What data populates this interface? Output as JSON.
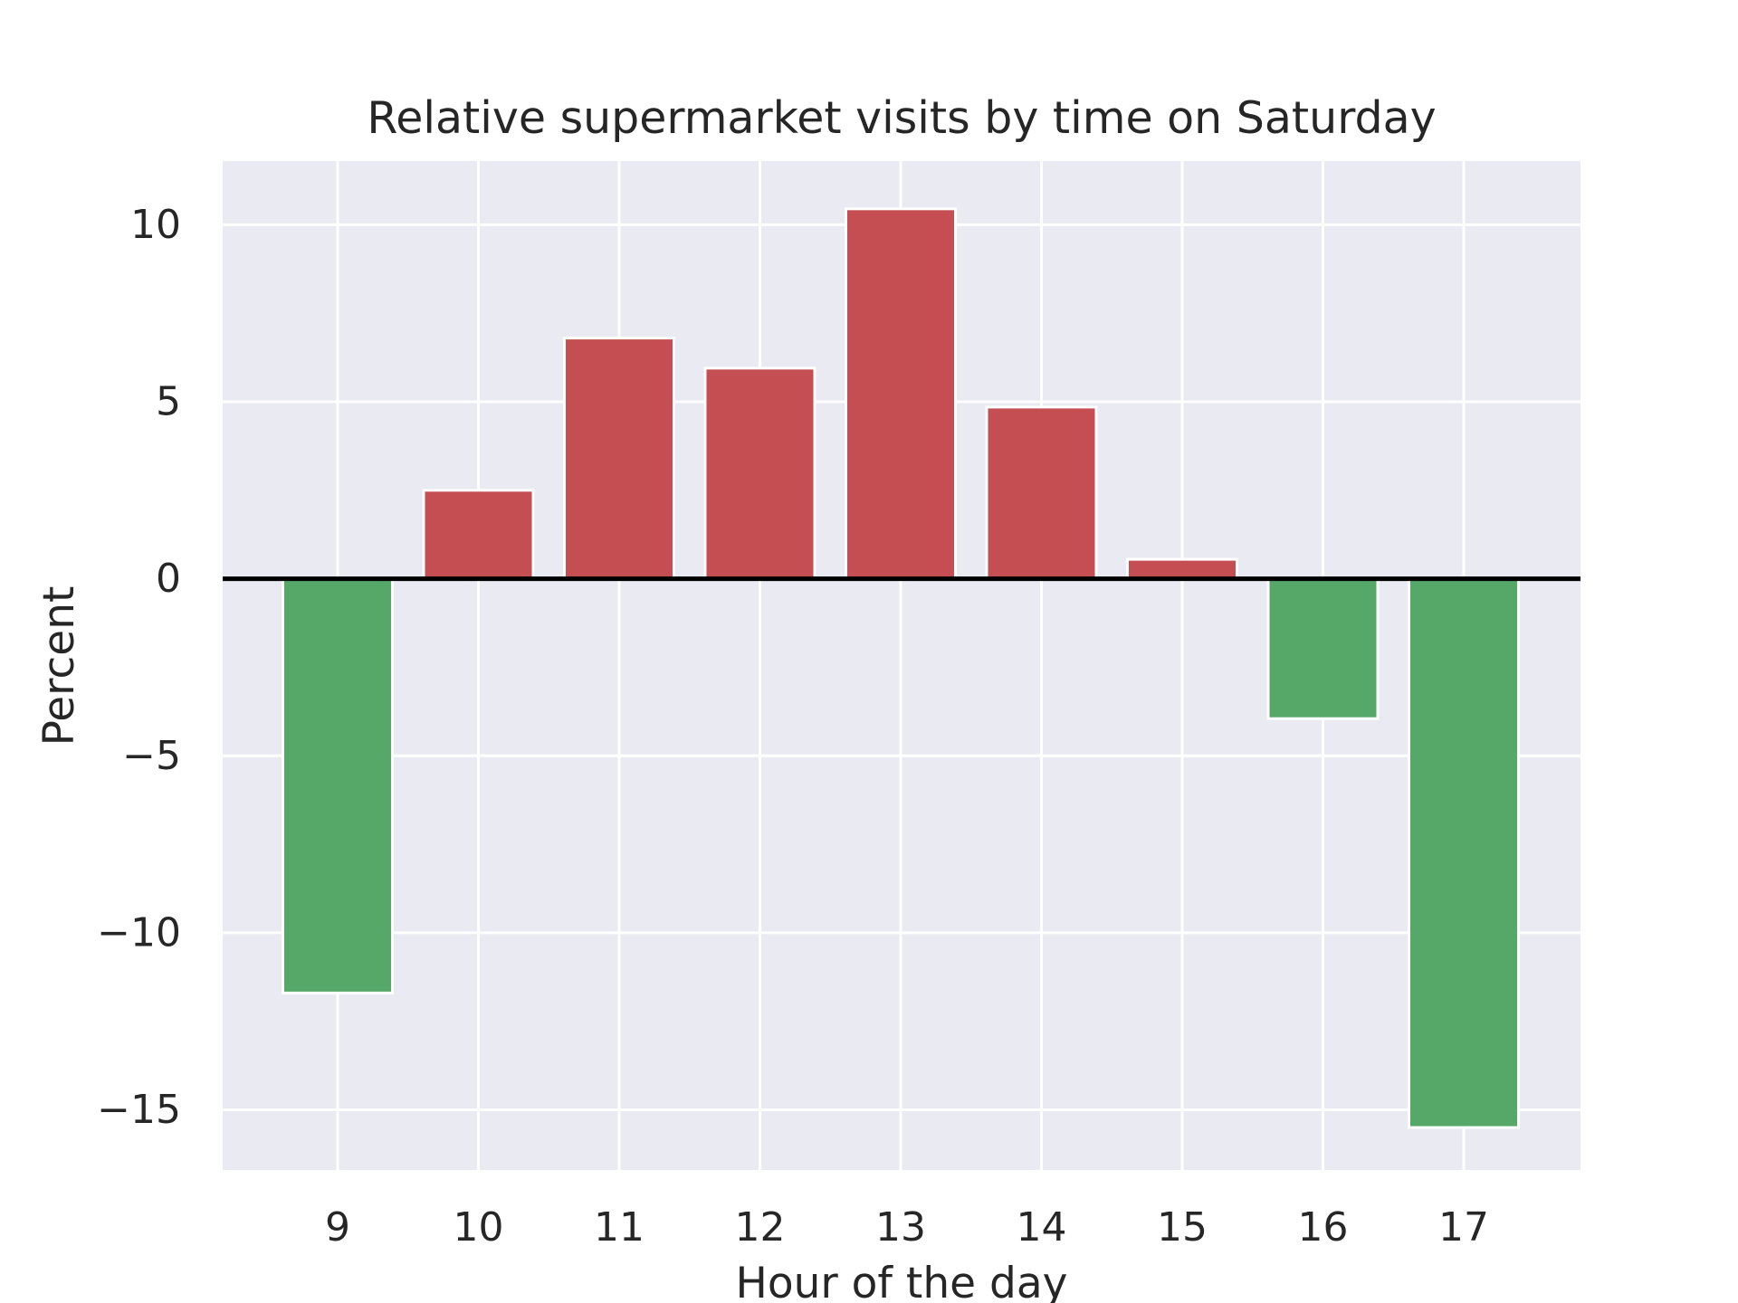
{
  "chart_data": {
    "type": "bar",
    "title": "Relative supermarket visits by time on Saturday",
    "xlabel": "Hour of the day",
    "ylabel": "Percent",
    "categories": [
      "9",
      "10",
      "11",
      "12",
      "13",
      "14",
      "15",
      "16",
      "17"
    ],
    "values": [
      -11.7,
      2.5,
      6.8,
      5.95,
      10.45,
      4.85,
      0.55,
      -3.95,
      -15.5
    ],
    "ylim": [
      -16.7,
      11.8
    ],
    "yticks": [
      10,
      5,
      0,
      -5,
      -10,
      -15
    ],
    "ytick_labels": [
      "10",
      "5",
      "0",
      "−5",
      "−10",
      "−15"
    ],
    "grid": true,
    "legend": "none",
    "colors": {
      "positive": "#c44e52",
      "negative": "#55a868",
      "background": "#eaeaf2",
      "grid": "#ffffff",
      "zero_line": "#000000",
      "text": "#262626"
    }
  }
}
